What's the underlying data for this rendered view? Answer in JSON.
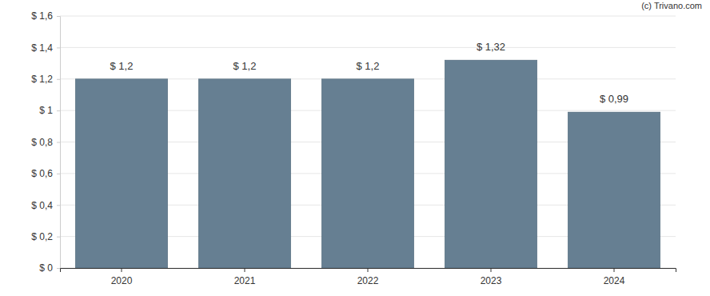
{
  "chart_data": {
    "type": "bar",
    "categories": [
      "2020",
      "2021",
      "2022",
      "2023",
      "2024"
    ],
    "values": [
      1.2,
      1.2,
      1.2,
      1.32,
      0.99
    ],
    "value_labels": [
      "$ 1,2",
      "$ 1,2",
      "$ 1,2",
      "$ 1,32",
      "$ 0,99"
    ],
    "color": "#667f92",
    "ylim": [
      0,
      1.6
    ],
    "yticks": [
      {
        "value": 0,
        "label": "$ 0"
      },
      {
        "value": 0.2,
        "label": "$ 0,2"
      },
      {
        "value": 0.4,
        "label": "$ 0,4"
      },
      {
        "value": 0.6,
        "label": "$ 0,6"
      },
      {
        "value": 0.8,
        "label": "$ 0,8"
      },
      {
        "value": 1,
        "label": "$ 1"
      },
      {
        "value": 1.2,
        "label": "$ 1,2"
      },
      {
        "value": 1.4,
        "label": "$ 1,4"
      },
      {
        "value": 1.6,
        "label": "$ 1,6"
      }
    ],
    "grid": true,
    "data_labels": true,
    "annotations": [
      "(c) Trivano.com"
    ]
  }
}
